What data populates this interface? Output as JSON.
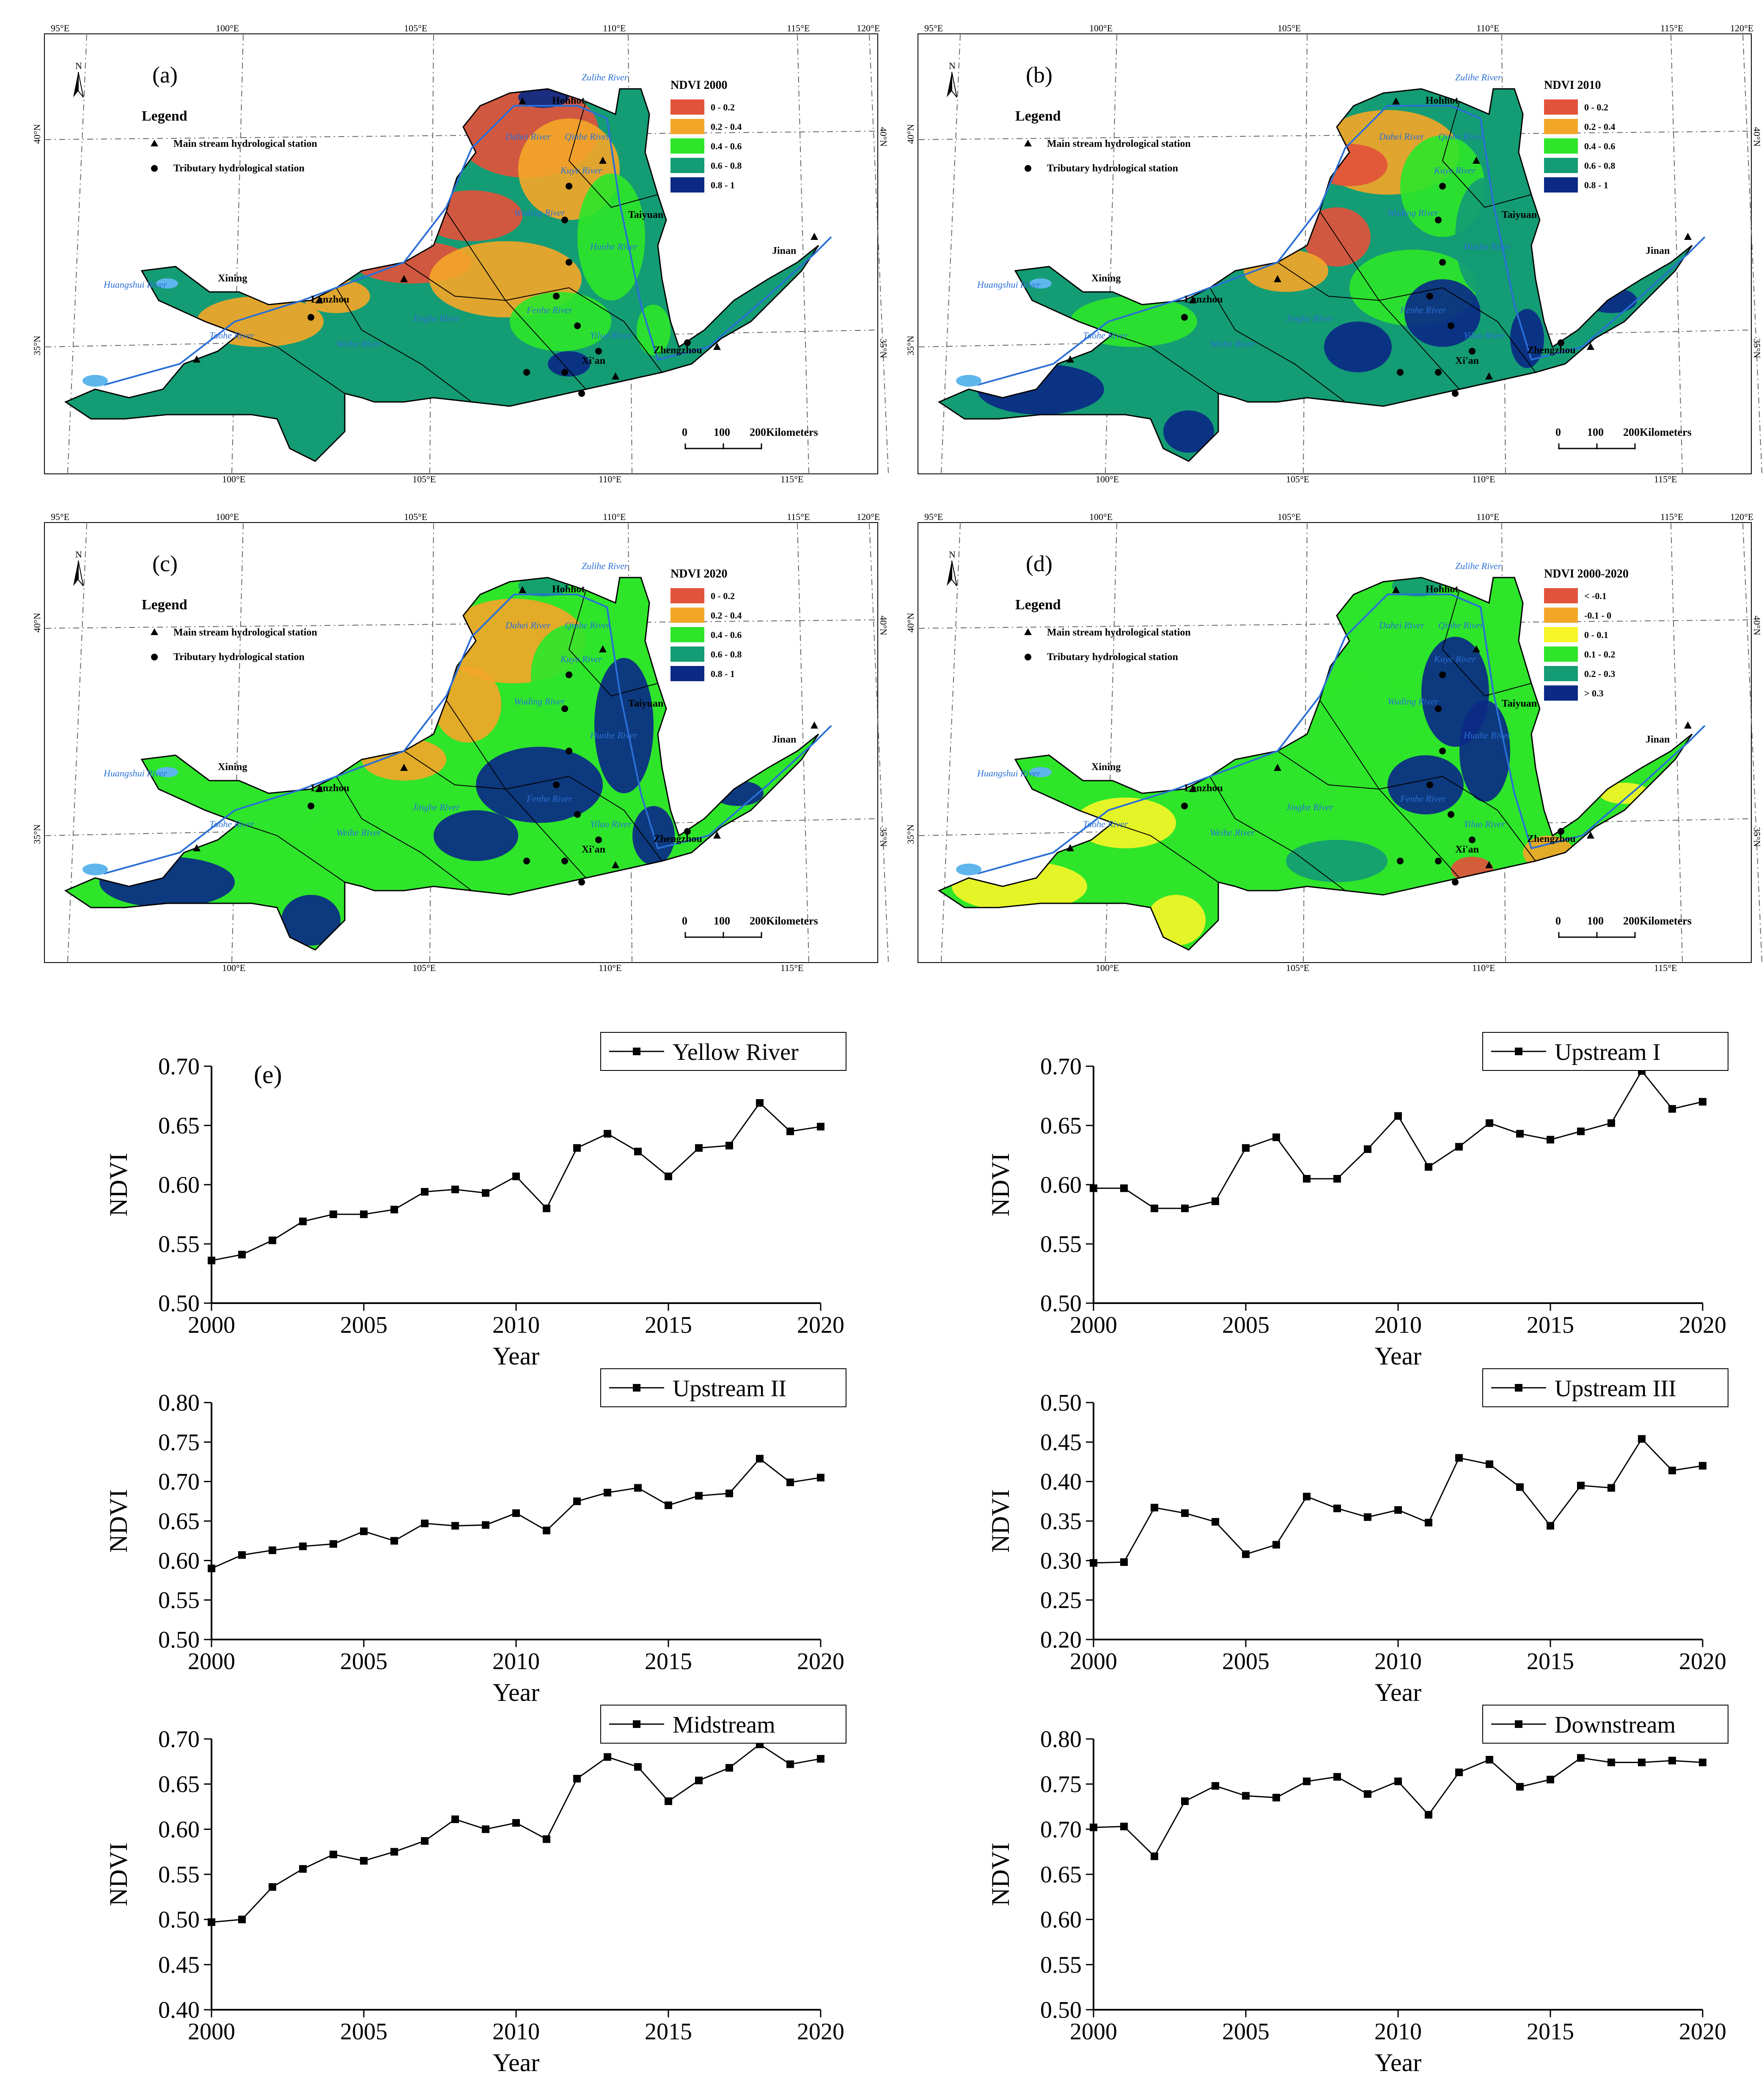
{
  "maps": [
    {
      "label": "(a)",
      "legend_title": "Legend",
      "main_station": "Main stream hydrological station",
      "tributary_station": "Tributary hydrological station",
      "ndvi_title": "NDVI 2000",
      "classes": [
        {
          "label": "0 - 0.2",
          "color": "#e2533c"
        },
        {
          "label": "0.2 - 0.4",
          "color": "#f2a628"
        },
        {
          "label": "0.4 - 0.6",
          "color": "#2ee52a"
        },
        {
          "label": "0.6 - 0.8",
          "color": "#149c74"
        },
        {
          "label": "0.8 - 1",
          "color": "#0b2a86"
        }
      ],
      "scale": {
        "zero": "0",
        "hundred": "100",
        "end": "200Kilometers"
      },
      "north": "N"
    },
    {
      "label": "(b)",
      "legend_title": "Legend",
      "main_station": "Main stream hydrological station",
      "tributary_station": "Tributary hydrological station",
      "ndvi_title": "NDVI 2010",
      "classes": [
        {
          "label": "0 - 0.2",
          "color": "#e2533c"
        },
        {
          "label": "0.2 - 0.4",
          "color": "#f2a628"
        },
        {
          "label": "0.4 - 0.6",
          "color": "#2ee52a"
        },
        {
          "label": "0.6 - 0.8",
          "color": "#149c74"
        },
        {
          "label": "0.8 - 1",
          "color": "#0b2a86"
        }
      ],
      "scale": {
        "zero": "0",
        "hundred": "100",
        "end": "200Kilometers"
      },
      "north": "N"
    },
    {
      "label": "(c)",
      "legend_title": "Legend",
      "main_station": "Main stream hydrological station",
      "tributary_station": "Tributary hydrological station",
      "ndvi_title": "NDVI 2020",
      "classes": [
        {
          "label": "0 - 0.2",
          "color": "#e2533c"
        },
        {
          "label": "0.2 - 0.4",
          "color": "#f2a628"
        },
        {
          "label": "0.4 - 0.6",
          "color": "#2ee52a"
        },
        {
          "label": "0.6 - 0.8",
          "color": "#149c74"
        },
        {
          "label": "0.8 - 1",
          "color": "#0b2a86"
        }
      ],
      "scale": {
        "zero": "0",
        "hundred": "100",
        "end": "200Kilometers"
      },
      "north": "N"
    },
    {
      "label": "(d)",
      "legend_title": "Legend",
      "main_station": "Main stream hydrological station",
      "tributary_station": "Tributary hydrological station",
      "ndvi_title": "NDVI 2000-2020",
      "classes": [
        {
          "label": "< -0.1",
          "color": "#e2533c"
        },
        {
          "label": "-0.1 - 0",
          "color": "#f2a628"
        },
        {
          "label": "0 - 0.1",
          "color": "#f5f527"
        },
        {
          "label": "0.1 - 0.2",
          "color": "#2ee52a"
        },
        {
          "label": "0.2 - 0.3",
          "color": "#149c74"
        },
        {
          "label": "> 0.3",
          "color": "#0b2a86"
        }
      ],
      "scale": {
        "zero": "0",
        "hundred": "100",
        "end": "200Kilometers"
      },
      "north": "N"
    }
  ],
  "map_common": {
    "top_lon_ticks": [
      "95°E",
      "100°E",
      "105°E",
      "110°E",
      "115°E",
      "120°E"
    ],
    "bottom_lon_ticks": [
      "100°E",
      "105°E",
      "110°E",
      "115°E"
    ],
    "lat_ticks": [
      "40°N",
      "35°N"
    ],
    "cities": [
      "Hohhot",
      "Taiyuan",
      "Jinan",
      "Zhengzhou",
      "Xi'an",
      "Lanzhou",
      "Xining"
    ],
    "rivers": [
      "Huangshui River",
      "Taohe River",
      "Weihe River",
      "Jinghe River",
      "Fenhe River",
      "Yiluo River",
      "Wuding River",
      "Kuye River",
      "Qinhe River",
      "Dahei River",
      "Hunhe River",
      "Zulihe River"
    ],
    "colors": {
      "river": "#2a6fd6",
      "lake": "#5fb6ec",
      "boundary": "#000000"
    }
  },
  "chart_data": [
    {
      "type": "line",
      "title": "Yellow River",
      "panel_label": "(e)",
      "x": [
        2000,
        2001,
        2002,
        2003,
        2004,
        2005,
        2006,
        2007,
        2008,
        2009,
        2010,
        2011,
        2012,
        2013,
        2014,
        2015,
        2016,
        2017,
        2018,
        2019,
        2020
      ],
      "series": [
        {
          "name": "Yellow River",
          "values": [
            0.536,
            0.541,
            0.553,
            0.569,
            0.575,
            0.575,
            0.579,
            0.594,
            0.596,
            0.593,
            0.607,
            0.58,
            0.631,
            0.643,
            0.628,
            0.607,
            0.631,
            0.633,
            0.669,
            0.645,
            0.649
          ]
        }
      ],
      "xlabel": "Year",
      "ylabel": "NDVI",
      "xlim": [
        2000,
        2020
      ],
      "ylim": [
        0.5,
        0.7
      ],
      "xticks": [
        "2000",
        "2005",
        "2010",
        "2015",
        "2020"
      ],
      "yticks": [
        "0.50",
        "0.55",
        "0.60",
        "0.65",
        "0.70"
      ],
      "legend_position": "top-right"
    },
    {
      "type": "line",
      "title": "Upstream I",
      "x": [
        2000,
        2001,
        2002,
        2003,
        2004,
        2005,
        2006,
        2007,
        2008,
        2009,
        2010,
        2011,
        2012,
        2013,
        2014,
        2015,
        2016,
        2017,
        2018,
        2019,
        2020
      ],
      "series": [
        {
          "name": "Upstream I",
          "values": [
            0.597,
            0.597,
            0.58,
            0.58,
            0.586,
            0.631,
            0.64,
            0.605,
            0.605,
            0.63,
            0.658,
            0.615,
            0.632,
            0.652,
            0.643,
            0.638,
            0.645,
            0.652,
            0.696,
            0.664,
            0.67
          ]
        }
      ],
      "xlabel": "Year",
      "ylabel": "NDVI",
      "xlim": [
        2000,
        2020
      ],
      "ylim": [
        0.5,
        0.7
      ],
      "xticks": [
        "2000",
        "2005",
        "2010",
        "2015",
        "2020"
      ],
      "yticks": [
        "0.50",
        "0.55",
        "0.60",
        "0.65",
        "0.70"
      ],
      "legend_position": "top-right"
    },
    {
      "type": "line",
      "title": "Upstream II",
      "x": [
        2000,
        2001,
        2002,
        2003,
        2004,
        2005,
        2006,
        2007,
        2008,
        2009,
        2010,
        2011,
        2012,
        2013,
        2014,
        2015,
        2016,
        2017,
        2018,
        2019,
        2020
      ],
      "series": [
        {
          "name": "Upstream II",
          "values": [
            0.59,
            0.607,
            0.613,
            0.618,
            0.621,
            0.637,
            0.625,
            0.647,
            0.644,
            0.645,
            0.66,
            0.638,
            0.675,
            0.686,
            0.692,
            0.67,
            0.682,
            0.685,
            0.729,
            0.699,
            0.705
          ]
        }
      ],
      "xlabel": "Year",
      "ylabel": "NDVI",
      "xlim": [
        2000,
        2020
      ],
      "ylim": [
        0.5,
        0.8
      ],
      "xticks": [
        "2000",
        "2005",
        "2010",
        "2015",
        "2020"
      ],
      "yticks": [
        "0.50",
        "0.55",
        "0.60",
        "0.65",
        "0.70",
        "0.75",
        "0.80"
      ],
      "legend_position": "top-right"
    },
    {
      "type": "line",
      "title": "Upstream III",
      "x": [
        2000,
        2001,
        2002,
        2003,
        2004,
        2005,
        2006,
        2007,
        2008,
        2009,
        2010,
        2011,
        2012,
        2013,
        2014,
        2015,
        2016,
        2017,
        2018,
        2019,
        2020
      ],
      "series": [
        {
          "name": "Upstream III",
          "values": [
            0.297,
            0.298,
            0.367,
            0.36,
            0.349,
            0.308,
            0.32,
            0.381,
            0.366,
            0.355,
            0.364,
            0.348,
            0.43,
            0.422,
            0.393,
            0.344,
            0.395,
            0.392,
            0.454,
            0.414,
            0.42
          ]
        }
      ],
      "xlabel": "Year",
      "ylabel": "NDVI",
      "xlim": [
        2000,
        2020
      ],
      "ylim": [
        0.2,
        0.5
      ],
      "xticks": [
        "2000",
        "2005",
        "2010",
        "2015",
        "2020"
      ],
      "yticks": [
        "0.20",
        "0.25",
        "0.30",
        "0.35",
        "0.40",
        "0.45",
        "0.50"
      ],
      "legend_position": "top-right"
    },
    {
      "type": "line",
      "title": "Midstream",
      "x": [
        2000,
        2001,
        2002,
        2003,
        2004,
        2005,
        2006,
        2007,
        2008,
        2009,
        2010,
        2011,
        2012,
        2013,
        2014,
        2015,
        2016,
        2017,
        2018,
        2019,
        2020
      ],
      "series": [
        {
          "name": "Midstream",
          "values": [
            0.497,
            0.5,
            0.536,
            0.556,
            0.572,
            0.565,
            0.575,
            0.587,
            0.611,
            0.6,
            0.607,
            0.589,
            0.656,
            0.68,
            0.669,
            0.631,
            0.654,
            0.668,
            0.694,
            0.672,
            0.678
          ]
        }
      ],
      "xlabel": "Year",
      "ylabel": "NDVI",
      "xlim": [
        2000,
        2020
      ],
      "ylim": [
        0.4,
        0.7
      ],
      "xticks": [
        "2000",
        "2005",
        "2010",
        "2015",
        "2020"
      ],
      "yticks": [
        "0.40",
        "0.45",
        "0.50",
        "0.55",
        "0.60",
        "0.65",
        "0.70"
      ],
      "legend_position": "top-right"
    },
    {
      "type": "line",
      "title": "Downstream",
      "x": [
        2000,
        2001,
        2002,
        2003,
        2004,
        2005,
        2006,
        2007,
        2008,
        2009,
        2010,
        2011,
        2012,
        2013,
        2014,
        2015,
        2016,
        2017,
        2018,
        2019,
        2020
      ],
      "series": [
        {
          "name": "Downstream",
          "values": [
            0.702,
            0.703,
            0.67,
            0.731,
            0.748,
            0.737,
            0.735,
            0.753,
            0.758,
            0.739,
            0.753,
            0.716,
            0.763,
            0.777,
            0.747,
            0.755,
            0.779,
            0.774,
            0.774,
            0.776,
            0.774
          ]
        }
      ],
      "xlabel": "Year",
      "ylabel": "NDVI",
      "xlim": [
        2000,
        2020
      ],
      "ylim": [
        0.5,
        0.8
      ],
      "xticks": [
        "2000",
        "2005",
        "2010",
        "2015",
        "2020"
      ],
      "yticks": [
        "0.50",
        "0.55",
        "0.60",
        "0.65",
        "0.70",
        "0.75",
        "0.80"
      ],
      "legend_position": "top-right"
    }
  ]
}
